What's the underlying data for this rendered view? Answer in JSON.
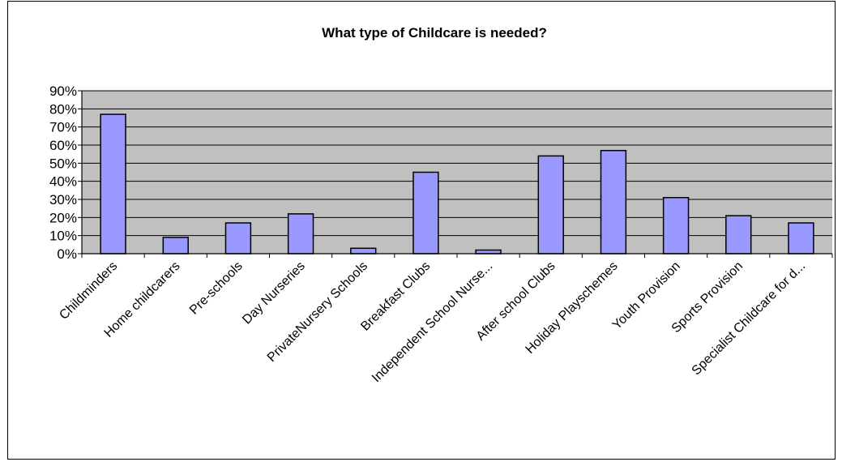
{
  "chart_data": {
    "type": "bar",
    "title": "What type of Childcare is needed?",
    "xlabel": "",
    "ylabel": "",
    "categories": [
      "Childminders",
      "Home childcarers",
      "Pre-schools",
      "Day Nurseries",
      "PrivateNursery Schools",
      "Breakfast Clubs",
      "Independent School Nurse...",
      "After school Clubs",
      "Holiday Playschemes",
      "Youth Provision",
      "Sports Provision",
      "Specialist Childcare for d..."
    ],
    "values": [
      77,
      9,
      17,
      22,
      3,
      45,
      2,
      54,
      57,
      31,
      21,
      17
    ],
    "ylim": [
      0,
      90
    ],
    "yticks": [
      0,
      10,
      20,
      30,
      40,
      50,
      60,
      70,
      80,
      90
    ],
    "ytick_labels": [
      "0%",
      "10%",
      "20%",
      "30%",
      "40%",
      "50%",
      "60%",
      "70%",
      "80%",
      "90%"
    ],
    "y_unit": "%",
    "grid": true,
    "legend": "none",
    "colors": {
      "bar_fill": "#9999ff",
      "bar_stroke": "#000000",
      "plot_background": "#c0c0c0",
      "grid": "#000000"
    }
  }
}
